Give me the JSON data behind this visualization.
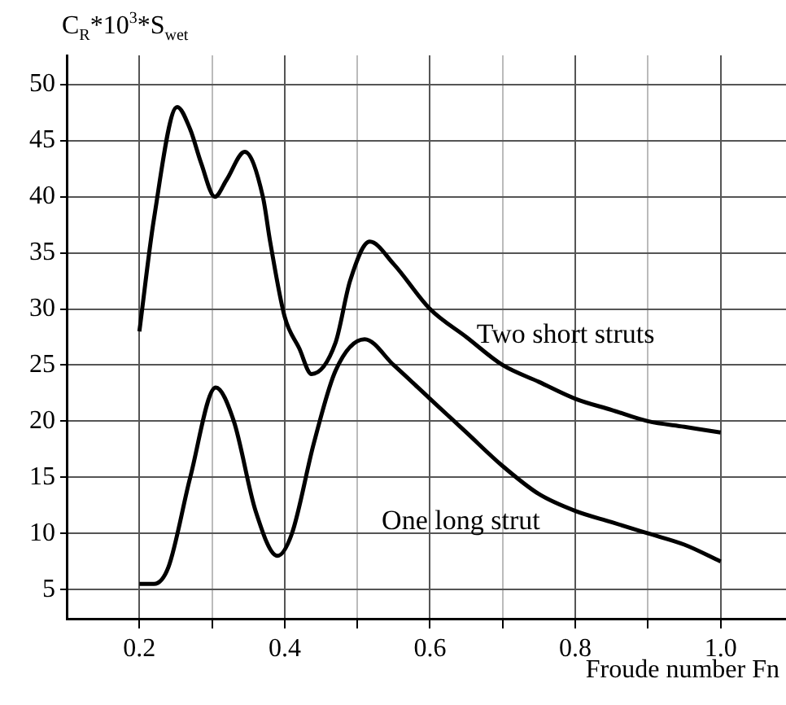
{
  "chart_data": {
    "type": "line",
    "xlabel": "Froude number Fn",
    "ylabel": "C$_{R}$*10$^{3}$*S$_{wet}$",
    "series": [
      {
        "name": "Two short struts",
        "color": "#000000",
        "x": [
          0.2,
          0.22,
          0.252,
          0.27,
          0.285,
          0.304,
          0.32,
          0.345,
          0.37,
          0.38,
          0.4,
          0.42,
          0.437,
          0.47,
          0.49,
          0.517,
          0.55,
          0.6,
          0.65,
          0.7,
          0.75,
          0.8,
          0.85,
          0.9,
          0.95,
          1.0
        ],
        "values": [
          28,
          38,
          48,
          46,
          43,
          40,
          41.5,
          44,
          40,
          36,
          29.3,
          26.5,
          24.2,
          27,
          32.5,
          36,
          34,
          30,
          27.5,
          25,
          23.5,
          22,
          21,
          20,
          19.5,
          19
        ]
      },
      {
        "name": "One long strut",
        "color": "#000000",
        "x": [
          0.2,
          0.22,
          0.24,
          0.27,
          0.305,
          0.33,
          0.36,
          0.39,
          0.41,
          0.44,
          0.47,
          0.51,
          0.55,
          0.6,
          0.65,
          0.7,
          0.75,
          0.8,
          0.85,
          0.9,
          0.95,
          1.0
        ],
        "values": [
          5.5,
          5.5,
          7,
          15,
          23,
          20,
          12,
          8,
          10,
          18,
          24.5,
          27.3,
          25,
          22,
          19,
          16,
          13.5,
          12,
          11,
          10,
          9,
          7.5
        ]
      }
    ],
    "xlim": [
      0.1,
      1.09
    ],
    "ylim": [
      2.4,
      52.6
    ],
    "xticks": [
      {
        "value": 0.2,
        "label": "0.2"
      },
      {
        "value": 0.3,
        "label": null
      },
      {
        "value": 0.4,
        "label": "0.4"
      },
      {
        "value": 0.5,
        "label": null
      },
      {
        "value": 0.6,
        "label": "0.6"
      },
      {
        "value": 0.7,
        "label": null
      },
      {
        "value": 0.8,
        "label": "0.8"
      },
      {
        "value": 0.9,
        "label": null
      },
      {
        "value": 1.0,
        "label": "1.0"
      }
    ],
    "yticks": [
      5,
      10,
      15,
      20,
      25,
      30,
      35,
      40,
      45,
      50
    ],
    "grid": true,
    "legend": false,
    "marker": "none",
    "line_style": "solid"
  }
}
